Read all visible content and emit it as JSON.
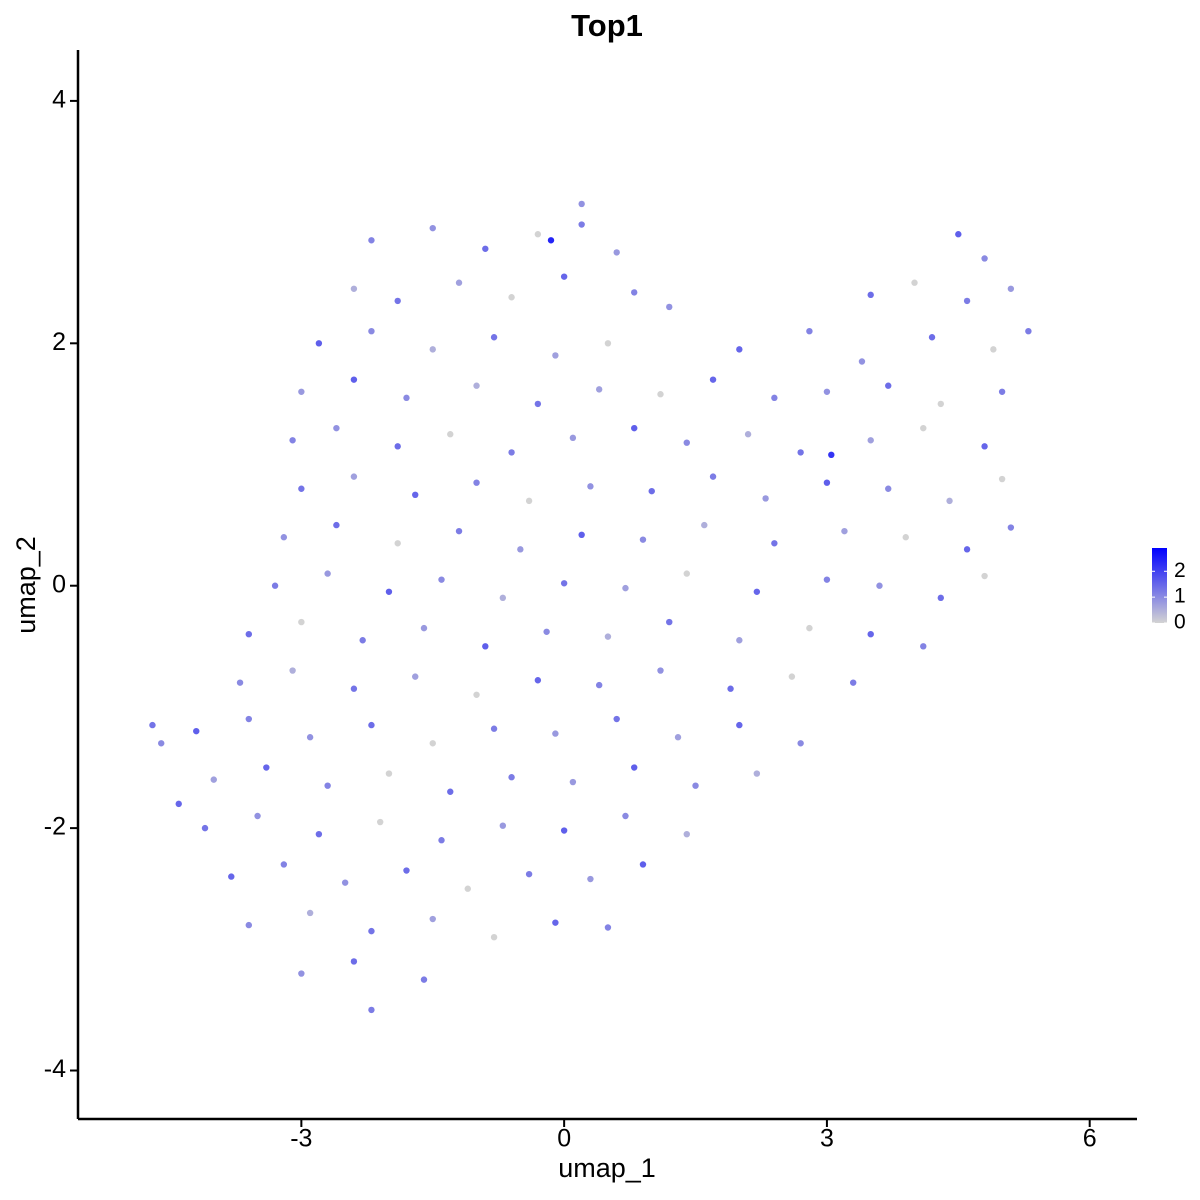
{
  "chart_data": {
    "type": "scatter",
    "title": "Top1",
    "xlabel": "umap_1",
    "ylabel": "umap_2",
    "x": [
      -2.2,
      -1.5,
      -0.9,
      -0.3,
      0.2,
      0.6,
      4.5,
      4.8,
      -2.4,
      -1.9,
      -1.2,
      -0.6,
      0.0,
      0.8,
      1.2,
      3.5,
      4.0,
      4.6,
      5.1,
      -2.8,
      -2.2,
      -1.5,
      -0.8,
      -0.1,
      0.5,
      2.0,
      2.8,
      3.4,
      4.2,
      4.9,
      5.3,
      -3.0,
      -2.4,
      -1.8,
      -1.0,
      -0.3,
      0.4,
      1.1,
      1.7,
      2.4,
      3.0,
      3.7,
      4.3,
      5.0,
      -3.1,
      -2.6,
      -1.9,
      -1.3,
      -0.6,
      0.1,
      0.8,
      1.4,
      2.1,
      2.7,
      3.5,
      4.1,
      4.8,
      -3.0,
      -2.4,
      -1.7,
      -1.0,
      -0.4,
      0.3,
      1.0,
      1.7,
      2.3,
      3.0,
      3.7,
      4.4,
      5.0,
      -3.2,
      -2.6,
      -1.9,
      -1.2,
      -0.5,
      0.2,
      0.9,
      1.6,
      2.4,
      3.2,
      3.9,
      4.6,
      5.1,
      -3.3,
      -2.7,
      -2.0,
      -1.4,
      -0.7,
      0.0,
      0.7,
      1.4,
      2.2,
      3.0,
      3.6,
      4.3,
      4.8,
      -3.6,
      -3.0,
      -2.3,
      -1.6,
      -0.9,
      -0.2,
      0.5,
      1.2,
      2.0,
      2.8,
      3.5,
      4.1,
      -3.7,
      -3.1,
      -2.4,
      -1.7,
      -1.0,
      -0.3,
      0.4,
      1.1,
      1.9,
      2.6,
      3.3,
      -4.2,
      -3.6,
      -2.9,
      -2.2,
      -1.5,
      -0.8,
      -0.1,
      0.6,
      1.3,
      2.0,
      2.7,
      -4.0,
      -3.4,
      -2.7,
      -2.0,
      -1.3,
      -0.6,
      0.1,
      0.8,
      1.5,
      2.2,
      -4.1,
      -3.5,
      -2.8,
      -2.1,
      -1.4,
      -0.7,
      0.0,
      0.7,
      1.4,
      -3.8,
      -3.2,
      -2.5,
      -1.8,
      -1.1,
      -0.4,
      0.3,
      0.9,
      -3.6,
      -2.9,
      -2.2,
      -1.5,
      -0.8,
      -0.1,
      0.5,
      -3.0,
      -2.4,
      -1.6,
      -4.7,
      -4.6,
      -4.4,
      -2.2,
      0.2,
      -0.15,
      3.05
    ],
    "y": [
      2.85,
      2.95,
      2.78,
      2.9,
      2.98,
      2.75,
      2.9,
      2.7,
      2.45,
      2.35,
      2.5,
      2.38,
      2.55,
      2.42,
      2.3,
      2.4,
      2.5,
      2.35,
      2.45,
      2.0,
      2.1,
      1.95,
      2.05,
      1.9,
      2.0,
      1.95,
      2.1,
      1.85,
      2.05,
      1.95,
      2.1,
      1.6,
      1.7,
      1.55,
      1.65,
      1.5,
      1.62,
      1.58,
      1.7,
      1.55,
      1.6,
      1.65,
      1.5,
      1.6,
      1.2,
      1.3,
      1.15,
      1.25,
      1.1,
      1.22,
      1.3,
      1.18,
      1.25,
      1.1,
      1.2,
      1.3,
      1.15,
      0.8,
      0.9,
      0.75,
      0.85,
      0.7,
      0.82,
      0.78,
      0.9,
      0.72,
      0.85,
      0.8,
      0.7,
      0.88,
      0.4,
      0.5,
      0.35,
      0.45,
      0.3,
      0.42,
      0.38,
      0.5,
      0.35,
      0.45,
      0.4,
      0.3,
      0.48,
      0.0,
      0.1,
      -0.05,
      0.05,
      -0.1,
      0.02,
      -0.02,
      0.1,
      -0.05,
      0.05,
      0.0,
      -0.1,
      0.08,
      -0.4,
      -0.3,
      -0.45,
      -0.35,
      -0.5,
      -0.38,
      -0.42,
      -0.3,
      -0.45,
      -0.35,
      -0.4,
      -0.5,
      -0.8,
      -0.7,
      -0.85,
      -0.75,
      -0.9,
      -0.78,
      -0.82,
      -0.7,
      -0.85,
      -0.75,
      -0.8,
      -1.2,
      -1.1,
      -1.25,
      -1.15,
      -1.3,
      -1.18,
      -1.22,
      -1.1,
      -1.25,
      -1.15,
      -1.3,
      -1.6,
      -1.5,
      -1.65,
      -1.55,
      -1.7,
      -1.58,
      -1.62,
      -1.5,
      -1.65,
      -1.55,
      -2.0,
      -1.9,
      -2.05,
      -1.95,
      -2.1,
      -1.98,
      -2.02,
      -1.9,
      -2.05,
      -2.4,
      -2.3,
      -2.45,
      -2.35,
      -2.5,
      -2.38,
      -2.42,
      -2.3,
      -2.8,
      -2.7,
      -2.85,
      -2.75,
      -2.9,
      -2.78,
      -2.82,
      -3.2,
      -3.1,
      -3.25,
      -1.15,
      -1.3,
      -1.8,
      -3.5,
      3.15,
      2.85,
      1.08
    ],
    "values": [
      1.1,
      0.9,
      1.4,
      0,
      1.2,
      0.8,
      1.6,
      1.0,
      0.5,
      1.3,
      0.7,
      0,
      1.5,
      1.1,
      0.9,
      1.4,
      0,
      1.2,
      0.8,
      1.6,
      1.0,
      0.5,
      1.3,
      0.7,
      0,
      1.5,
      1.1,
      0.9,
      1.4,
      0,
      1.2,
      0.8,
      1.6,
      1.0,
      0.5,
      1.3,
      0.7,
      0,
      1.5,
      1.1,
      0.9,
      1.4,
      0,
      1.2,
      1.1,
      0.9,
      1.4,
      0,
      1.2,
      0.8,
      1.6,
      1.0,
      0.5,
      1.3,
      0.7,
      0,
      1.5,
      1.3,
      0.7,
      1.5,
      1.1,
      0,
      0.9,
      1.4,
      1.2,
      0.8,
      1.6,
      1.0,
      0.5,
      0,
      0.9,
      1.4,
      0,
      1.2,
      0.8,
      1.6,
      1.0,
      0.5,
      1.3,
      0.7,
      0,
      1.5,
      1.1,
      1.2,
      0.8,
      1.6,
      1.0,
      0.5,
      1.3,
      0.7,
      0,
      1.5,
      1.1,
      0.9,
      1.4,
      0,
      1.4,
      0,
      1.2,
      0.8,
      1.6,
      1.0,
      0.5,
      1.3,
      0.7,
      0,
      1.5,
      1.1,
      1.0,
      0.5,
      1.3,
      0.7,
      0,
      1.5,
      1.1,
      0.9,
      1.4,
      0,
      1.2,
      1.6,
      1.1,
      0.9,
      1.4,
      0,
      1.2,
      0.8,
      1.3,
      0.7,
      1.5,
      1.0,
      0.7,
      1.5,
      1.1,
      0,
      1.4,
      1.2,
      0.8,
      1.6,
      1.0,
      0.5,
      1.3,
      0.9,
      1.4,
      0,
      1.2,
      0.8,
      1.6,
      1.0,
      0.5,
      1.5,
      1.1,
      0.9,
      1.4,
      0,
      1.2,
      0.8,
      1.6,
      1.0,
      0.5,
      1.3,
      0.7,
      0,
      1.5,
      1.1,
      0.9,
      1.4,
      1.2,
      1.3,
      1.0,
      1.5,
      1.2,
      0.9,
      2.4,
      2.2
    ],
    "xlim": [
      -5.55,
      6.54
    ],
    "ylim": [
      -4.4,
      4.42
    ],
    "xticks": [
      -3,
      0,
      3,
      6
    ],
    "yticks": [
      -4,
      -2,
      0,
      2,
      4
    ],
    "color_low": "#d3d3d3",
    "color_high": "#0000ff",
    "color_lim": [
      0,
      2.9
    ],
    "color_ticks": [
      0,
      1,
      2
    ]
  }
}
